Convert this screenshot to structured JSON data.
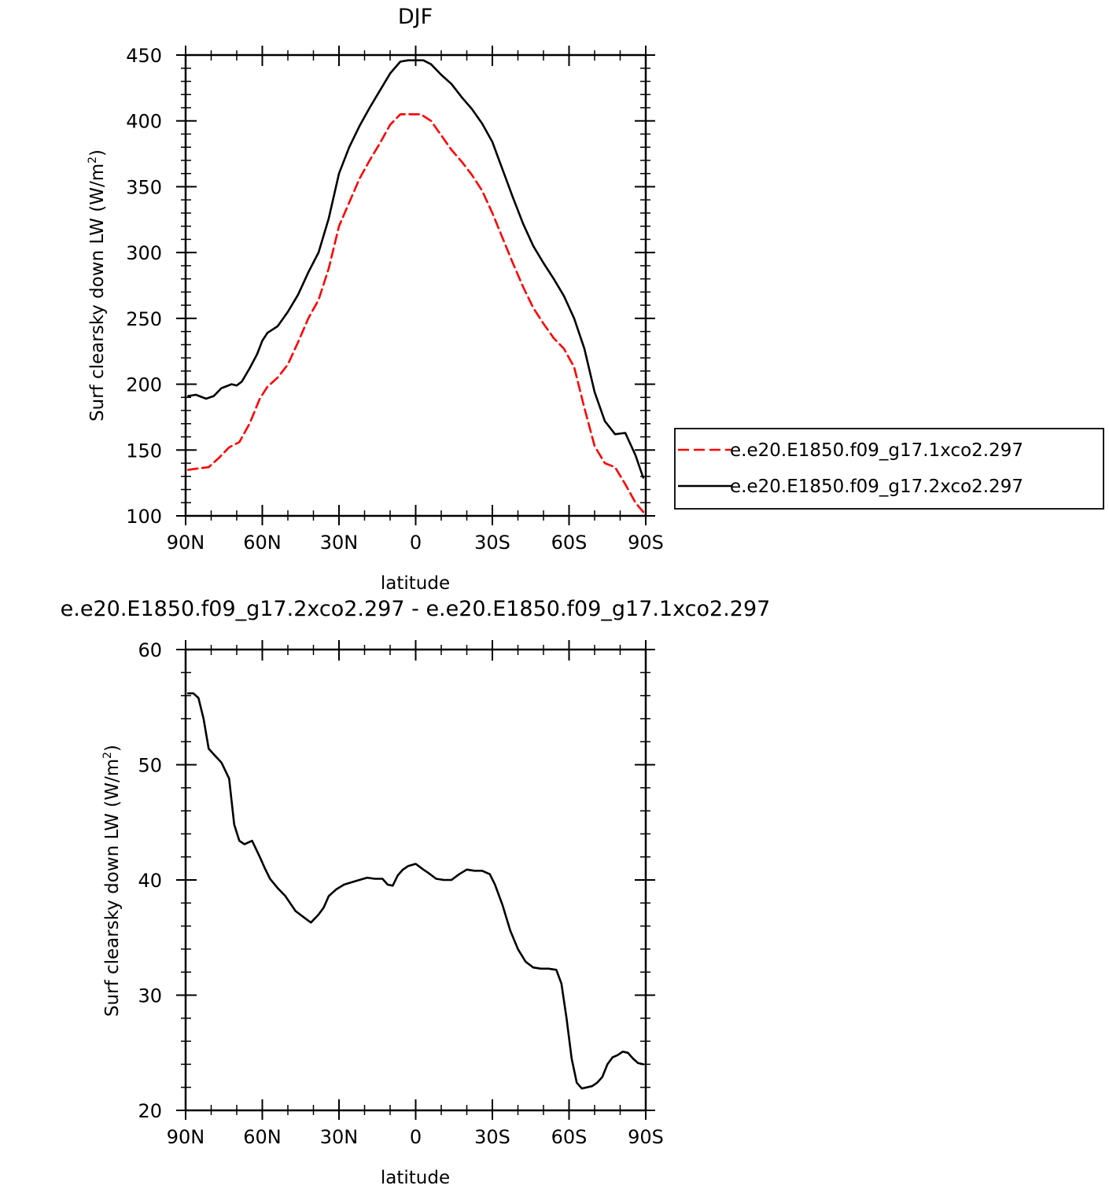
{
  "chart_data": [
    {
      "type": "line",
      "title": "DJF",
      "xlabel": "latitude",
      "ylabel": "Surf clearsky down LW (W/m²)",
      "ylabel_main": "Surf clearsky down LW (W/m",
      "ylabel_sup": "2",
      "ylabel_end": ")",
      "xlim": [
        90,
        -90
      ],
      "ylim": [
        100,
        450
      ],
      "x_ticks": [
        90,
        60,
        30,
        0,
        -30,
        -60,
        -90
      ],
      "x_tick_labels": [
        "90N",
        "60N",
        "30N",
        "0",
        "30S",
        "60S",
        "90S"
      ],
      "y_ticks": [
        100,
        150,
        200,
        250,
        300,
        350,
        400,
        450
      ],
      "y_tick_labels": [
        "100",
        "150",
        "200",
        "250",
        "300",
        "350",
        "400",
        "450"
      ],
      "legend": "right",
      "series": [
        {
          "name": "e.e20.E1850.f09_g17.1xco2.297",
          "color": "#ff0000",
          "dash": "dashed",
          "x": [
            89,
            85,
            81,
            77,
            73,
            69,
            65,
            61,
            58,
            54,
            50,
            46,
            42,
            38,
            34,
            30,
            26,
            22,
            18,
            14,
            10,
            6,
            2,
            -2,
            -6,
            -10,
            -14,
            -18,
            -22,
            -26,
            -30,
            -34,
            -38,
            -42,
            -46,
            -50,
            -54,
            -58,
            -62,
            -66,
            -70,
            -74,
            -78,
            -82,
            -86,
            -89
          ],
          "values": [
            135,
            136,
            137,
            144,
            152,
            156,
            170,
            189,
            198,
            205,
            215,
            232,
            250,
            264,
            288,
            320,
            338,
            356,
            370,
            383,
            397,
            405,
            405,
            405,
            400,
            389,
            378,
            369,
            359,
            347,
            330,
            311,
            292,
            274,
            258,
            246,
            235,
            227,
            213,
            182,
            153,
            140,
            137,
            124,
            110,
            103
          ]
        },
        {
          "name": "e.e20.E1850.f09_g17.2xco2.297",
          "color": "#000000",
          "dash": "solid",
          "x": [
            89,
            86,
            82,
            79,
            76,
            72,
            70,
            68,
            65,
            62,
            60,
            58,
            54,
            50,
            46,
            42,
            38,
            34,
            30,
            26,
            22,
            18,
            14,
            10,
            6,
            3,
            0,
            -3,
            -6,
            -10,
            -14,
            -18,
            -22,
            -26,
            -30,
            -34,
            -38,
            -42,
            -46,
            -50,
            -54,
            -58,
            -62,
            -66,
            -70,
            -74,
            -78,
            -82,
            -86,
            -89
          ],
          "values": [
            191,
            192,
            189,
            191,
            197,
            200,
            199,
            202,
            212,
            223,
            233,
            239,
            244,
            255,
            268,
            285,
            300,
            326,
            360,
            380,
            396,
            410,
            423,
            436,
            445,
            446,
            446,
            446,
            443,
            435,
            428,
            418,
            409,
            398,
            384,
            363,
            342,
            322,
            305,
            292,
            280,
            267,
            250,
            227,
            194,
            172,
            162,
            163,
            146,
            129
          ]
        }
      ]
    },
    {
      "type": "line",
      "title": "e.e20.E1850.f09_g17.2xco2.297 - e.e20.E1850.f09_g17.1xco2.297",
      "xlabel": "latitude",
      "ylabel": "Surf clearsky down LW (W/m²)",
      "ylabel_main": "Surf clearsky down LW (W/m",
      "ylabel_sup": "2",
      "ylabel_end": ")",
      "xlim": [
        90,
        -90
      ],
      "ylim": [
        20,
        60
      ],
      "x_ticks": [
        90,
        60,
        30,
        0,
        -30,
        -60,
        -90
      ],
      "x_tick_labels": [
        "90N",
        "60N",
        "30N",
        "0",
        "30S",
        "60S",
        "90S"
      ],
      "y_ticks": [
        20,
        30,
        40,
        50,
        60
      ],
      "y_tick_labels": [
        "20",
        "30",
        "40",
        "50",
        "60"
      ],
      "series": [
        {
          "color": "#000000",
          "dash": "solid",
          "x": [
            89,
            87,
            85,
            83,
            81,
            79,
            76,
            73,
            71,
            69,
            67,
            64,
            61,
            59,
            57,
            54,
            51,
            47,
            44,
            41,
            38,
            36,
            34,
            31,
            28,
            25,
            22,
            19,
            16,
            13,
            11,
            9,
            7,
            5,
            3,
            0,
            -3,
            -5,
            -8,
            -11,
            -14,
            -17,
            -20,
            -23,
            -26,
            -29,
            -31,
            -34,
            -37,
            -40,
            -43,
            -46,
            -49,
            -52,
            -55,
            -57,
            -59,
            -61,
            -63,
            -65,
            -67,
            -69,
            -71,
            -73,
            -75,
            -77,
            -79,
            -81,
            -83,
            -85,
            -87,
            -89
          ],
          "values": [
            56.2,
            56.2,
            55.8,
            54,
            51.4,
            50.9,
            50.2,
            48.8,
            44.8,
            43.4,
            43.1,
            43.4,
            42,
            41,
            40.1,
            39.3,
            38.6,
            37.3,
            36.8,
            36.3,
            37.0,
            37.6,
            38.6,
            39.2,
            39.6,
            39.8,
            40.0,
            40.2,
            40.1,
            40.1,
            39.6,
            39.5,
            40.4,
            40.9,
            41.2,
            41.4,
            40.9,
            40.6,
            40.1,
            40.0,
            40.0,
            40.5,
            40.9,
            40.8,
            40.8,
            40.5,
            39.6,
            37.8,
            35.6,
            34.0,
            32.9,
            32.4,
            32.3,
            32.3,
            32.2,
            31.0,
            28.0,
            24.5,
            22.4,
            21.9,
            22.0,
            22.1,
            22.4,
            22.9,
            24.0,
            24.6,
            24.8,
            25.1,
            25.0,
            24.5,
            24.1,
            24.0
          ]
        }
      ]
    }
  ]
}
